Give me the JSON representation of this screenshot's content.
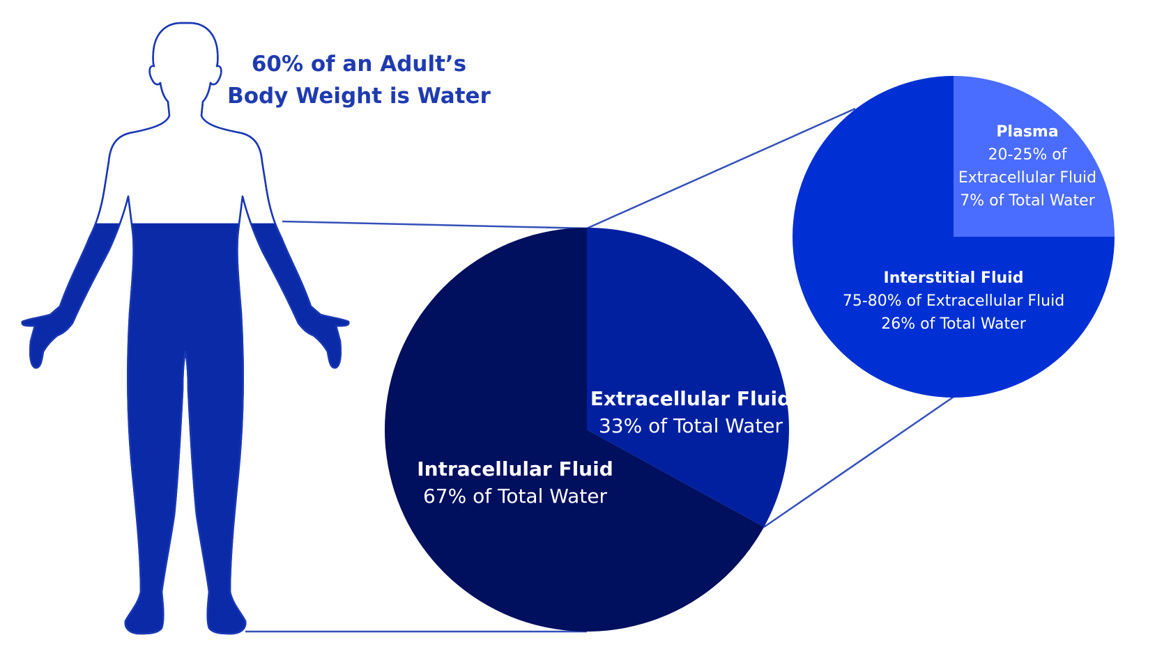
{
  "headline": {
    "line1": "60% of an Adult’s",
    "line2": "Body Weight is Water"
  },
  "body_fill": {
    "water_fraction": 0.6
  },
  "total_water_pie": {
    "slices": [
      {
        "key": "extracellular",
        "percent": 33,
        "color": "#0020a0",
        "label": "Extracellular Fluid",
        "sub": "33% of Total Water"
      },
      {
        "key": "intracellular",
        "percent": 67,
        "color": "#000f5e",
        "label": "Intracellular Fluid",
        "sub": "67% of Total Water"
      }
    ]
  },
  "extracellular_pie": {
    "slices": [
      {
        "key": "plasma",
        "fraction_of_ecf": 0.25,
        "color": "#4a6cff",
        "label": "Plasma",
        "sub1": "20-25% of",
        "sub2": "Extracellular Fluid",
        "sub3": "7% of Total Water"
      },
      {
        "key": "interstitial",
        "fraction_of_ecf": 0.75,
        "color": "#0030d4",
        "label": "Interstitial Fluid",
        "sub1": "75-80% of Extracellular Fluid",
        "sub2": "26% of Total Water"
      }
    ]
  },
  "colors": {
    "body": "#0a2aa8",
    "outline": "#1a38b4",
    "connector": "#3350b8",
    "headline": "#1f3bb0"
  }
}
